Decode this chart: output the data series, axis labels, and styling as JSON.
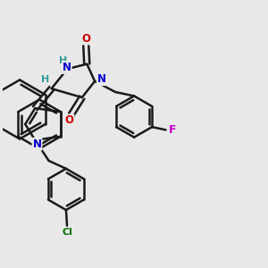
{
  "background_color": "#e8e8e8",
  "bond_color": "#1a1a1a",
  "bond_width": 1.8,
  "atom_colors": {
    "N": "#0000cc",
    "O": "#cc0000",
    "F": "#cc00cc",
    "Cl": "#007700",
    "H": "#339999"
  },
  "font_size": 8.5
}
